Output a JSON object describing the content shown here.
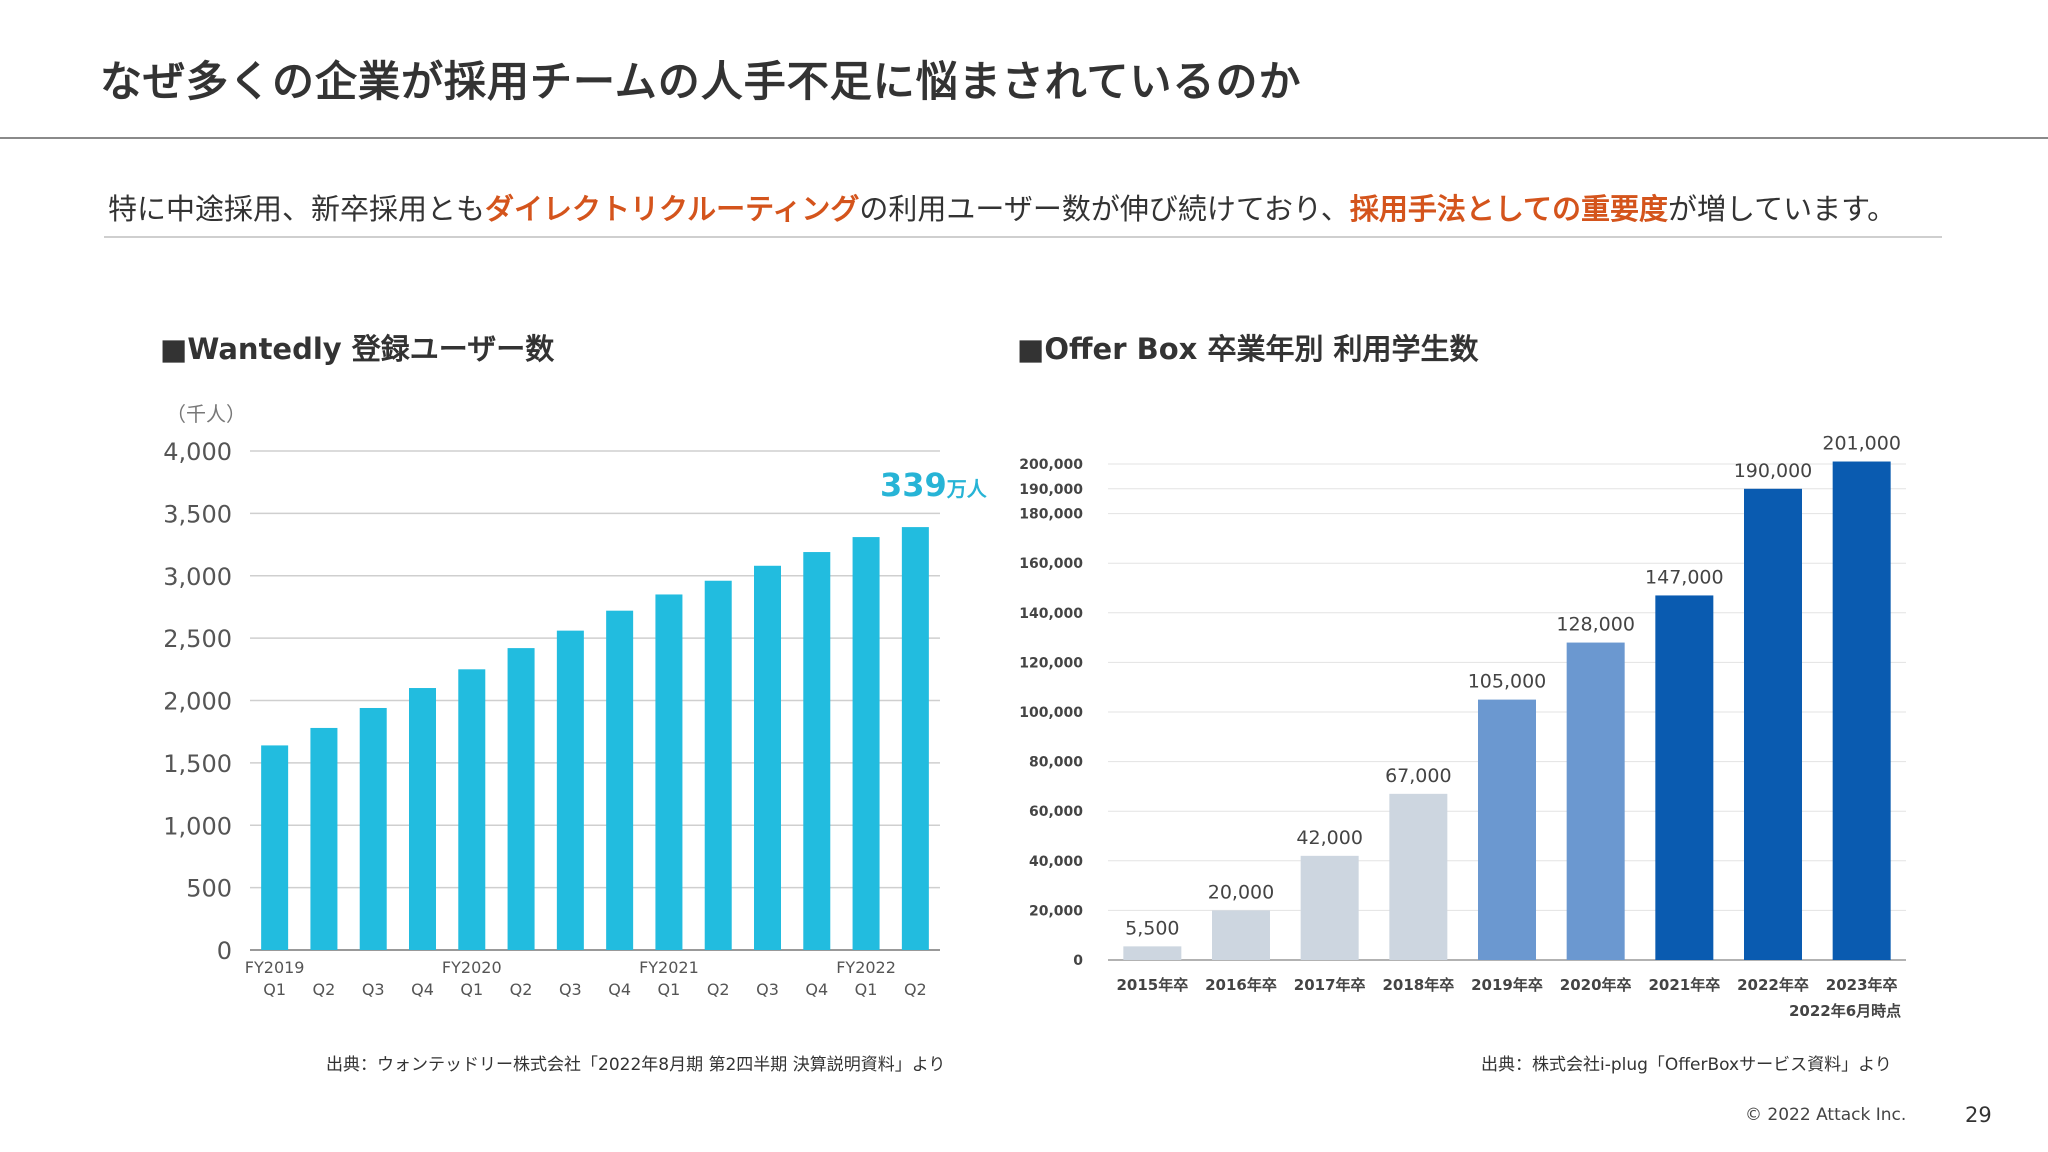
{
  "page": {
    "title": "なぜ多くの企業が採用チームの人手不足に悩まされているのか",
    "lead_1": "特に中途採用、新卒採用とも",
    "lead_hl1": "ダイレクトリクルーティング",
    "lead_2": "の利用ユーザー数が伸び続けており、",
    "lead_hl2": "採用手法としての重要度",
    "lead_3": "が増しています。",
    "copyright": "© 2022 Attack Inc.",
    "page_number": "29"
  },
  "left": {
    "heading": "■Wantedly 登録ユーザー数",
    "unit": "（千人）",
    "callout_number": "339",
    "callout_unit": "万人",
    "source": "出典：ウォンテッドリー株式会社「2022年8月期 第2四半期 決算説明資料」より"
  },
  "right": {
    "heading": "■Offer Box 卒業年別 利用学生数",
    "as_of": "2022年6月時点",
    "source": "出典：株式会社i-plug「OfferBoxサービス資料」より"
  },
  "colors": {
    "accent_orange": "#d4541c",
    "wantedly_bar": "#22bcdf",
    "offerbox_light": "#cdd6e0",
    "offerbox_mid": "#6b98d0",
    "offerbox_dark": "#0a5bb0"
  },
  "chart_data": [
    {
      "type": "bar",
      "ylabel": "（千人）",
      "ylim": [
        0,
        4000
      ],
      "yticks": [
        0,
        500,
        1000,
        1500,
        2000,
        2500,
        3000,
        3500,
        4000
      ],
      "ytick_labels": [
        "0",
        "500",
        "1,000",
        "1,500",
        "2,000",
        "2,500",
        "3,000",
        "3,500",
        "4,000"
      ],
      "grid": true,
      "categories": [
        "Q1",
        "Q2",
        "Q3",
        "Q4",
        "Q1",
        "Q2",
        "Q3",
        "Q4",
        "Q1",
        "Q2",
        "Q3",
        "Q4",
        "Q1",
        "Q2"
      ],
      "fiscal_year_labels": [
        "FY2019",
        "",
        "",
        "",
        "FY2020",
        "",
        "",
        "",
        "FY2021",
        "",
        "",
        "",
        "FY2022",
        ""
      ],
      "values": [
        1640,
        1780,
        1940,
        2100,
        2250,
        2420,
        2560,
        2720,
        2850,
        2960,
        3080,
        3190,
        3310,
        3390
      ],
      "annotation": "339万人"
    },
    {
      "type": "bar",
      "ylim": [
        0,
        200000
      ],
      "yticks": [
        0,
        20000,
        40000,
        60000,
        80000,
        100000,
        120000,
        140000,
        160000,
        180000,
        190000,
        200000
      ],
      "ytick_labels": [
        "0",
        "20,000",
        "40,000",
        "60,000",
        "80,000",
        "100,000",
        "120,000",
        "140,000",
        "160,000",
        "180,000",
        "190,000",
        "200,000"
      ],
      "grid": true,
      "categories": [
        "2015年卒",
        "2016年卒",
        "2017年卒",
        "2018年卒",
        "2019年卒",
        "2020年卒",
        "2021年卒",
        "2022年卒",
        "2023年卒"
      ],
      "values": [
        5500,
        20000,
        42000,
        67000,
        105000,
        128000,
        147000,
        190000,
        201000
      ],
      "value_labels": [
        "5,500",
        "20,000",
        "42,000",
        "67,000",
        "105,000",
        "128,000",
        "147,000",
        "190,000",
        "201,000"
      ],
      "bar_tones": [
        "light",
        "light",
        "light",
        "light",
        "mid",
        "mid",
        "dark",
        "dark",
        "dark"
      ]
    }
  ]
}
